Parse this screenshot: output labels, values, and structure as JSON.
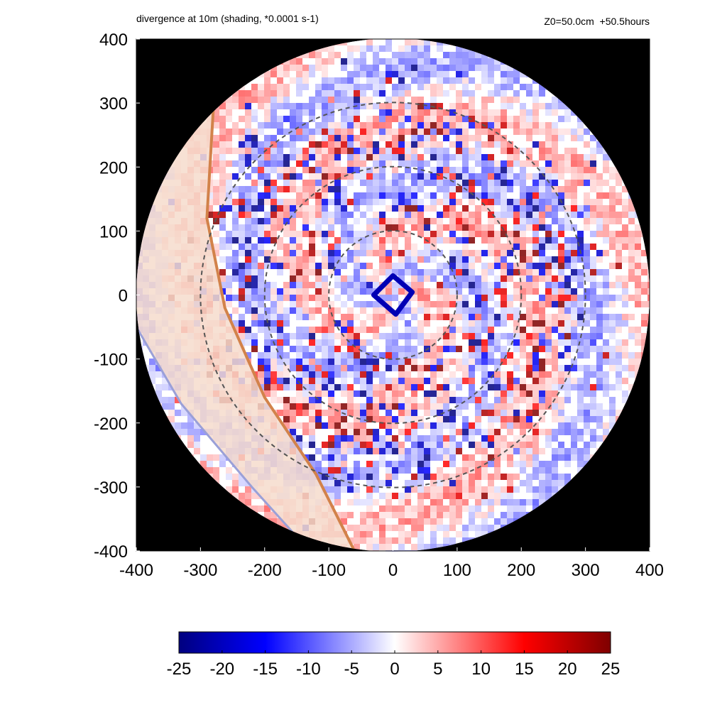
{
  "header": {
    "title": "divergence at 10m (shading, *0.0001 s-1)",
    "run_info": "Z0=50.0cm  +50.5hours"
  },
  "chart_data": {
    "type": "heatmap",
    "title": "divergence at 10m (shading, *0.0001 s-1)",
    "subtitle": "Z0=50.0cm  +50.5hours",
    "xlim": [
      -400,
      400
    ],
    "ylim": [
      -400,
      400
    ],
    "x_ticks": [
      -400,
      -300,
      -200,
      -100,
      0,
      100,
      200,
      300,
      400
    ],
    "y_ticks": [
      -400,
      -300,
      -200,
      -100,
      0,
      100,
      200,
      300,
      400
    ],
    "domain_radius": 400,
    "outside_domain_color": "#000000",
    "reference_circle_radii": [
      100,
      200,
      300
    ],
    "reference_circle_style": "dashed gray",
    "eye_center": [
      0,
      0
    ],
    "colorbar": {
      "range": [
        -25,
        25
      ],
      "ticks": [
        -25,
        -20,
        -15,
        -10,
        -5,
        0,
        5,
        10,
        15,
        20,
        25
      ],
      "colors": [
        {
          "value": -25,
          "color": "#00007f"
        },
        {
          "value": -15,
          "color": "#0000ff"
        },
        {
          "value": 0,
          "color": "#ffffff"
        },
        {
          "value": 15,
          "color": "#ff0000"
        },
        {
          "value": 25,
          "color": "#7f0000"
        }
      ]
    },
    "features": {
      "eyewall_ring_color": "#0000b4",
      "land_region_color": "#f6dccd",
      "coastline_color": "#d2824a",
      "coastline_points": [
        [
          -280,
          290
        ],
        [
          -290,
          120
        ],
        [
          -262,
          -20
        ],
        [
          -200,
          -160
        ],
        [
          -120,
          -280
        ],
        [
          -60,
          -400
        ]
      ],
      "coast_boundary_points": [
        [
          -400,
          -50
        ],
        [
          -330,
          -170
        ],
        [
          -220,
          -300
        ],
        [
          -130,
          -400
        ]
      ]
    }
  }
}
